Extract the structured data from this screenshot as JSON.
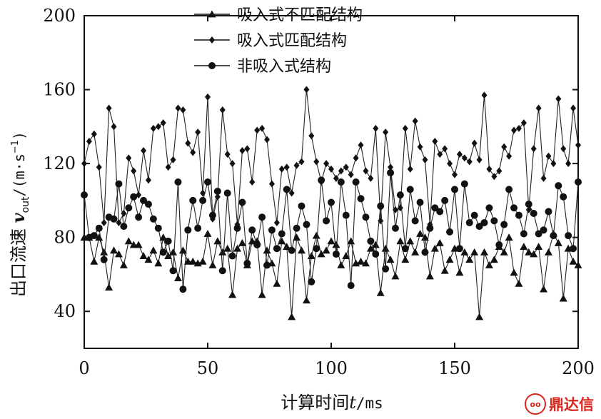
{
  "chart_data": {
    "type": "line",
    "title": "",
    "xlabel_main": "计算时间",
    "xlabel_var": "t",
    "xlabel_unit": "/ms",
    "ylabel_main": "出口流速",
    "ylabel_var": "v",
    "ylabel_sub": "out",
    "ylabel_unit": "/(m·s",
    "ylabel_unit_exp": "−1",
    "ylabel_unit_close": ")",
    "xlim": [
      0,
      200
    ],
    "ylim": [
      20,
      200
    ],
    "x_ticks": [
      0,
      50,
      100,
      150,
      200
    ],
    "y_ticks": [
      40,
      80,
      120,
      160,
      200
    ],
    "legend_position": "top-center",
    "grid": false,
    "x": [
      0,
      2,
      4,
      6,
      8,
      10,
      12,
      14,
      16,
      18,
      20,
      22,
      24,
      26,
      28,
      30,
      32,
      34,
      36,
      38,
      40,
      42,
      44,
      46,
      48,
      50,
      52,
      54,
      56,
      58,
      60,
      62,
      64,
      66,
      68,
      70,
      72,
      74,
      76,
      78,
      80,
      82,
      84,
      86,
      88,
      90,
      92,
      94,
      96,
      98,
      100,
      102,
      104,
      106,
      108,
      110,
      112,
      114,
      116,
      118,
      120,
      122,
      124,
      126,
      128,
      130,
      132,
      134,
      136,
      138,
      140,
      142,
      144,
      146,
      148,
      150,
      152,
      154,
      156,
      158,
      160,
      162,
      164,
      166,
      168,
      170,
      172,
      174,
      176,
      178,
      180,
      182,
      184,
      186,
      188,
      190,
      192,
      194,
      196,
      198,
      200
    ],
    "series": [
      {
        "name": "吸入式不匹配结构",
        "marker": "triangle",
        "values": [
          80,
          80,
          67,
          80,
          72,
          53,
          73,
          71,
          65,
          78,
          76,
          76,
          70,
          68,
          73,
          66,
          80,
          70,
          72,
          58,
          73,
          67,
          67,
          66,
          67,
          82,
          65,
          78,
          72,
          74,
          49,
          74,
          77,
          65,
          78,
          78,
          49,
          73,
          66,
          55,
          78,
          75,
          37,
          80,
          73,
          46,
          70,
          81,
          71,
          73,
          78,
          76,
          65,
          70,
          78,
          66,
          67,
          66,
          74,
          76,
          50,
          74,
          68,
          59,
          78,
          68,
          78,
          72,
          82,
          80,
          59,
          74,
          77,
          62,
          68,
          74,
          61,
          72,
          68,
          72,
          37,
          72,
          65,
          68,
          75,
          72,
          80,
          61,
          55,
          75,
          72,
          71,
          75,
          52,
          72,
          82,
          77,
          47,
          74,
          67,
          65
        ]
      },
      {
        "name": "吸入式匹配结构",
        "marker": "diamond",
        "values": [
          120,
          132,
          136,
          118,
          88,
          150,
          140,
          88,
          93,
          123,
          116,
          103,
          127,
          111,
          139,
          140,
          142,
          118,
          122,
          150,
          149,
          131,
          126,
          137,
          104,
          156,
          90,
          102,
          149,
          125,
          120,
          87,
          127,
          128,
          110,
          138,
          139,
          133,
          109,
          88,
          117,
          118,
          104,
          119,
          121,
          160,
          135,
          121,
          110,
          120,
          117,
          112,
          116,
          118,
          114,
          123,
          130,
          116,
          112,
          139,
          89,
          137,
          118,
          95,
          96,
          139,
          117,
          143,
          129,
          122,
          87,
          132,
          125,
          128,
          120,
          114,
          125,
          123,
          121,
          131,
          122,
          157,
          117,
          113,
          116,
          129,
          124,
          138,
          139,
          142,
          95,
          128,
          150,
          112,
          124,
          120,
          155,
          128,
          120,
          150,
          130
        ]
      },
      {
        "name": "非吸入式结构",
        "marker": "circle",
        "values": [
          103,
          80,
          81,
          85,
          68,
          91,
          90,
          109,
          86,
          96,
          102,
          91,
          100,
          98,
          90,
          85,
          72,
          78,
          62,
          110,
          52,
          84,
          100,
          85,
          100,
          110,
          92,
          105,
          62,
          104,
          70,
          85,
          99,
          66,
          84,
          76,
          91,
          65,
          84,
          74,
          82,
          106,
          73,
          85,
          97,
          87,
          56,
          74,
          111,
          89,
          99,
          71,
          110,
          92,
          54,
          110,
          101,
          91,
          78,
          71,
          97,
          63,
          115,
          85,
          103,
          74,
          106,
          89,
          99,
          72,
          85,
          96,
          94,
          100,
          83,
          106,
          74,
          109,
          88,
          92,
          86,
          88,
          96,
          89,
          76,
          87,
          106,
          96,
          92,
          82,
          98,
          93,
          82,
          84,
          94,
          81,
          108,
          102,
          81,
          74,
          110
        ]
      }
    ]
  },
  "watermark": {
    "logo_char": "oo",
    "text": "鼎达信"
  }
}
